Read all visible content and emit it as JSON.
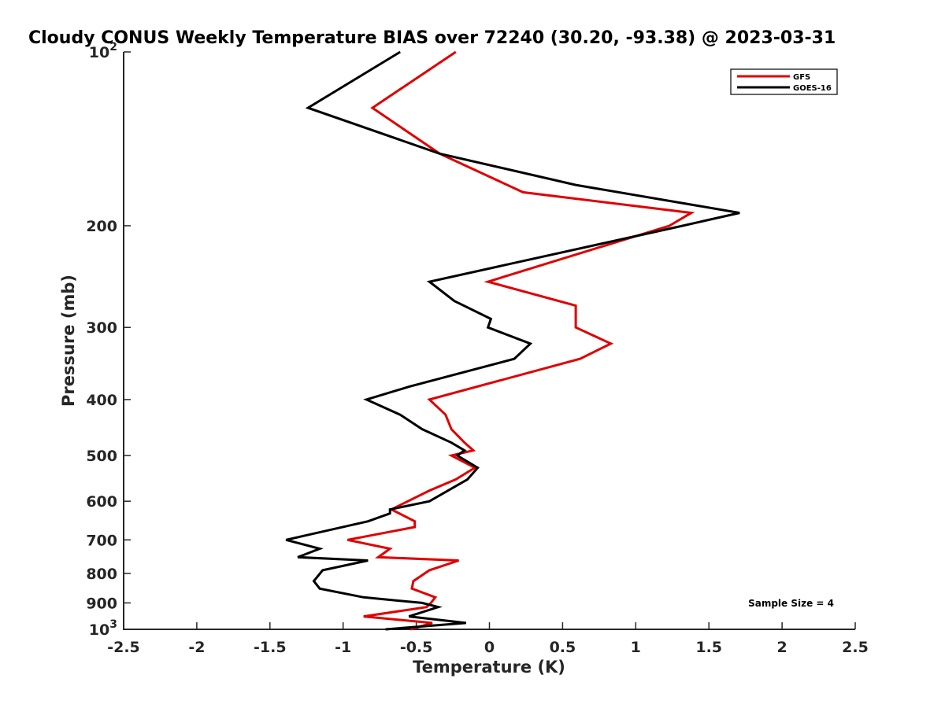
{
  "chart_data": {
    "type": "line",
    "title": "Cloudy CONUS Weekly Temperature BIAS over 72240 (30.20, -93.38) @ 2023-03-31",
    "xlabel": "Temperature (K)",
    "ylabel": "Pressure (mb)",
    "xlim": [
      -2.5,
      2.5
    ],
    "ylim": [
      100,
      1000
    ],
    "y_scale": "log",
    "y_reversed": true,
    "x_ticks": [
      {
        "value": -2.5,
        "label": "-2.5"
      },
      {
        "value": -2,
        "label": "-2"
      },
      {
        "value": -1.5,
        "label": "-1.5"
      },
      {
        "value": -1,
        "label": "-1"
      },
      {
        "value": -0.5,
        "label": "-0.5"
      },
      {
        "value": 0,
        "label": "0"
      },
      {
        "value": 0.5,
        "label": "0.5"
      },
      {
        "value": 1,
        "label": "1"
      },
      {
        "value": 1.5,
        "label": "1.5"
      },
      {
        "value": 2,
        "label": "2"
      },
      {
        "value": 2.5,
        "label": "2.5"
      }
    ],
    "y_ticks": [
      {
        "value": 100,
        "label": "10",
        "sup": "2"
      },
      {
        "value": 200,
        "label": "200",
        "sup": ""
      },
      {
        "value": 300,
        "label": "300",
        "sup": ""
      },
      {
        "value": 400,
        "label": "400",
        "sup": ""
      },
      {
        "value": 500,
        "label": "500",
        "sup": ""
      },
      {
        "value": 600,
        "label": "600",
        "sup": ""
      },
      {
        "value": 700,
        "label": "700",
        "sup": ""
      },
      {
        "value": 800,
        "label": "800",
        "sup": ""
      },
      {
        "value": 900,
        "label": "900",
        "sup": ""
      },
      {
        "value": 1000,
        "label": "10",
        "sup": "3"
      }
    ],
    "grid": false,
    "legend_position": "top-right",
    "series": [
      {
        "name": "GFS",
        "color": "#e00000",
        "points": [
          [
            -0.23,
            100
          ],
          [
            -0.8,
            125
          ],
          [
            -0.34,
            150
          ],
          [
            0.23,
            175
          ],
          [
            1.38,
            190
          ],
          [
            1.23,
            200
          ],
          [
            -0.01,
            250
          ],
          [
            0.59,
            275
          ],
          [
            0.59,
            300
          ],
          [
            0.83,
            320
          ],
          [
            0.62,
            340
          ],
          [
            -0.41,
            400
          ],
          [
            -0.3,
            425
          ],
          [
            -0.26,
            450
          ],
          [
            -0.17,
            475
          ],
          [
            -0.11,
            490
          ],
          [
            -0.26,
            500
          ],
          [
            -0.1,
            525
          ],
          [
            -0.23,
            550
          ],
          [
            -0.41,
            575
          ],
          [
            -0.67,
            620
          ],
          [
            -0.51,
            650
          ],
          [
            -0.51,
            665
          ],
          [
            -0.97,
            700
          ],
          [
            -0.68,
            725
          ],
          [
            -0.76,
            750
          ],
          [
            -0.21,
            760
          ],
          [
            -0.41,
            790
          ],
          [
            -0.52,
            825
          ],
          [
            -0.53,
            850
          ],
          [
            -0.37,
            880
          ],
          [
            -0.4,
            900
          ],
          [
            -0.43,
            915
          ],
          [
            -0.86,
            950
          ],
          [
            -0.39,
            975
          ],
          [
            -0.54,
            1000
          ]
        ]
      },
      {
        "name": "GOES-16",
        "color": "#000000",
        "points": [
          [
            -0.61,
            100
          ],
          [
            -1.24,
            125
          ],
          [
            -0.34,
            150
          ],
          [
            0.59,
            170
          ],
          [
            1.71,
            190
          ],
          [
            1.32,
            200
          ],
          [
            -0.41,
            250
          ],
          [
            -0.24,
            270
          ],
          [
            0.01,
            290
          ],
          [
            -0.01,
            300
          ],
          [
            0.28,
            320
          ],
          [
            0.17,
            340
          ],
          [
            -0.55,
            380
          ],
          [
            -0.84,
            400
          ],
          [
            -0.61,
            425
          ],
          [
            -0.46,
            450
          ],
          [
            -0.26,
            475
          ],
          [
            -0.17,
            490
          ],
          [
            -0.22,
            500
          ],
          [
            -0.08,
            525
          ],
          [
            -0.15,
            550
          ],
          [
            -0.41,
            600
          ],
          [
            -0.68,
            620
          ],
          [
            -0.68,
            630
          ],
          [
            -0.83,
            650
          ],
          [
            -1.39,
            700
          ],
          [
            -1.16,
            725
          ],
          [
            -1.31,
            750
          ],
          [
            -0.83,
            760
          ],
          [
            -1.14,
            790
          ],
          [
            -1.2,
            825
          ],
          [
            -1.16,
            850
          ],
          [
            -0.86,
            880
          ],
          [
            -0.46,
            900
          ],
          [
            -0.35,
            915
          ],
          [
            -0.55,
            950
          ],
          [
            -0.16,
            975
          ],
          [
            -0.71,
            1000
          ]
        ]
      }
    ],
    "annotations": [
      {
        "text": "Sample Size = 4",
        "position": "bottom-right"
      }
    ]
  }
}
